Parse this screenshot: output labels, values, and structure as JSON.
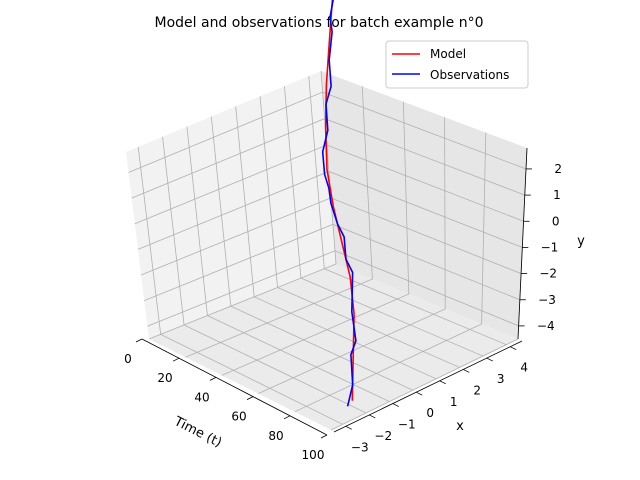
{
  "chart_data": {
    "type": "line3d",
    "title": "Model and observations for batch example n°0",
    "axes": {
      "time": {
        "label": "Time (t)",
        "range": [
          0,
          100
        ],
        "ticks": [
          0,
          20,
          40,
          60,
          80,
          100
        ]
      },
      "x": {
        "label": "x",
        "range": [
          -3.5,
          4.5
        ],
        "ticks": [
          -3,
          -2,
          -1,
          0,
          1,
          2,
          3,
          4
        ]
      },
      "y": {
        "label": "y",
        "range": [
          -4.5,
          2.8
        ],
        "ticks": [
          -4,
          -3,
          -2,
          -1,
          0,
          1,
          2
        ]
      }
    },
    "legend": {
      "placement": "top-right",
      "entries": [
        {
          "label": "Model",
          "color": "#ff0000"
        },
        {
          "label": "Observations",
          "color": "#0000ff"
        }
      ]
    },
    "series": [
      {
        "name": "Model",
        "color": "#ff0000",
        "t": [
          0,
          10,
          20,
          30,
          40,
          50,
          60,
          70,
          80,
          90,
          100
        ],
        "x": [
          -2.6,
          -1.8,
          -1.0,
          -0.4,
          0.0,
          0.4,
          0.9,
          1.6,
          2.4,
          3.3,
          4.2
        ],
        "y": [
          -4.0,
          -3.3,
          -2.6,
          -2.0,
          -1.4,
          -0.8,
          -0.2,
          0.5,
          1.2,
          2.0,
          2.7
        ]
      },
      {
        "name": "Observations",
        "color": "#0000ff",
        "t": [
          0,
          5,
          10,
          15,
          20,
          25,
          30,
          35,
          40,
          45,
          50,
          55,
          60,
          65,
          70,
          75,
          80,
          85,
          90,
          95,
          100
        ],
        "x": [
          -2.8,
          -2.2,
          -1.9,
          -1.3,
          -1.1,
          -0.7,
          -0.3,
          -0.2,
          0.1,
          0.2,
          0.3,
          0.6,
          0.8,
          1.1,
          1.7,
          2.0,
          2.6,
          2.9,
          3.4,
          3.7,
          4.3
        ],
        "y": [
          -4.1,
          -3.8,
          -3.2,
          -3.1,
          -2.5,
          -2.4,
          -1.9,
          -1.7,
          -1.3,
          -1.1,
          -0.7,
          -0.5,
          -0.3,
          0.1,
          0.4,
          0.9,
          1.1,
          1.6,
          2.1,
          2.3,
          2.8
        ]
      }
    ]
  }
}
